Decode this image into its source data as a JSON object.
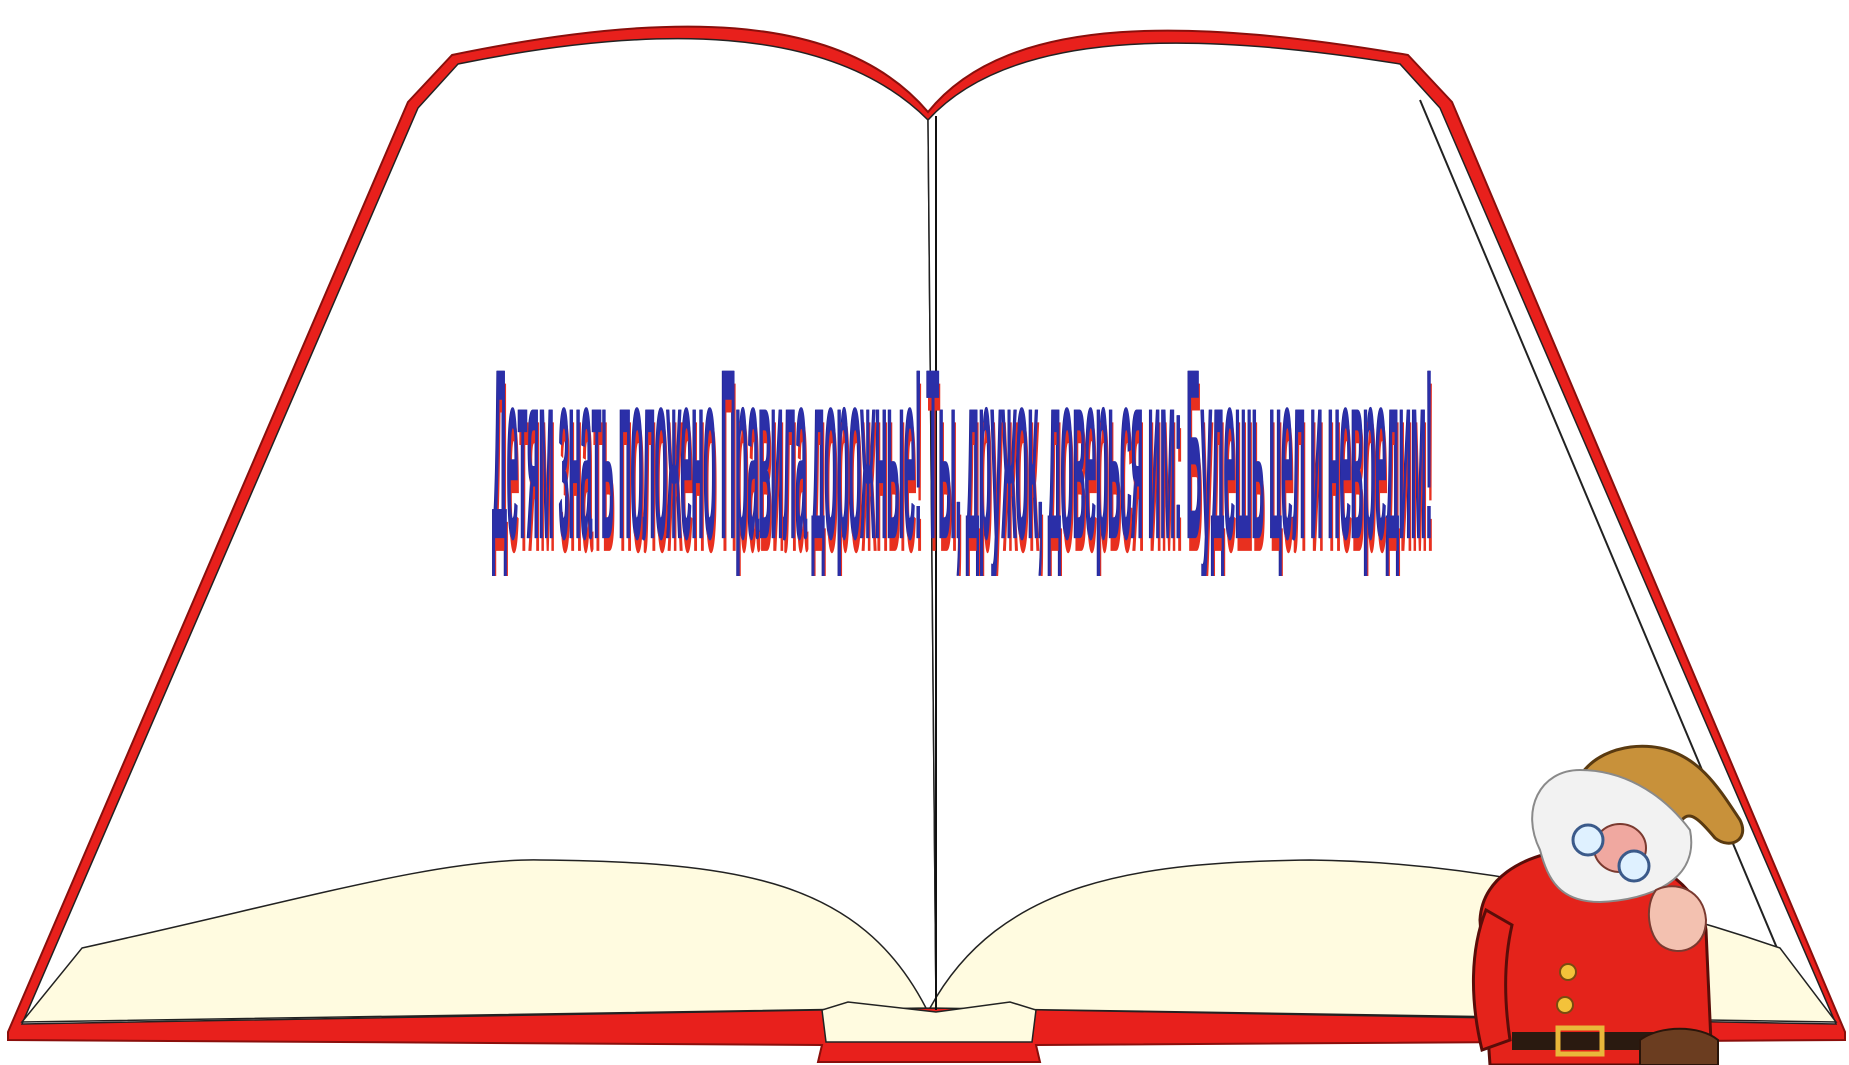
{
  "slide": {
    "slogan": "Детям знать положено Правила дорожные! Ты, дружок, доверься им: Будешь цел и невредим!"
  },
  "colors": {
    "background": "#ffffff",
    "book_cover_red": "#e8201c",
    "page_bottom_cream": "#fffbe0",
    "slogan_blue": "#2b2fa8",
    "slogan_shadow_red": "#e8301f",
    "dwarf_shirt_red": "#e4231b",
    "dwarf_hat": "#c8913a",
    "dwarf_beard": "#f2f2f2"
  },
  "icons": {
    "book": "open-book-illustration",
    "dwarf": "dwarf-character-illustration"
  }
}
